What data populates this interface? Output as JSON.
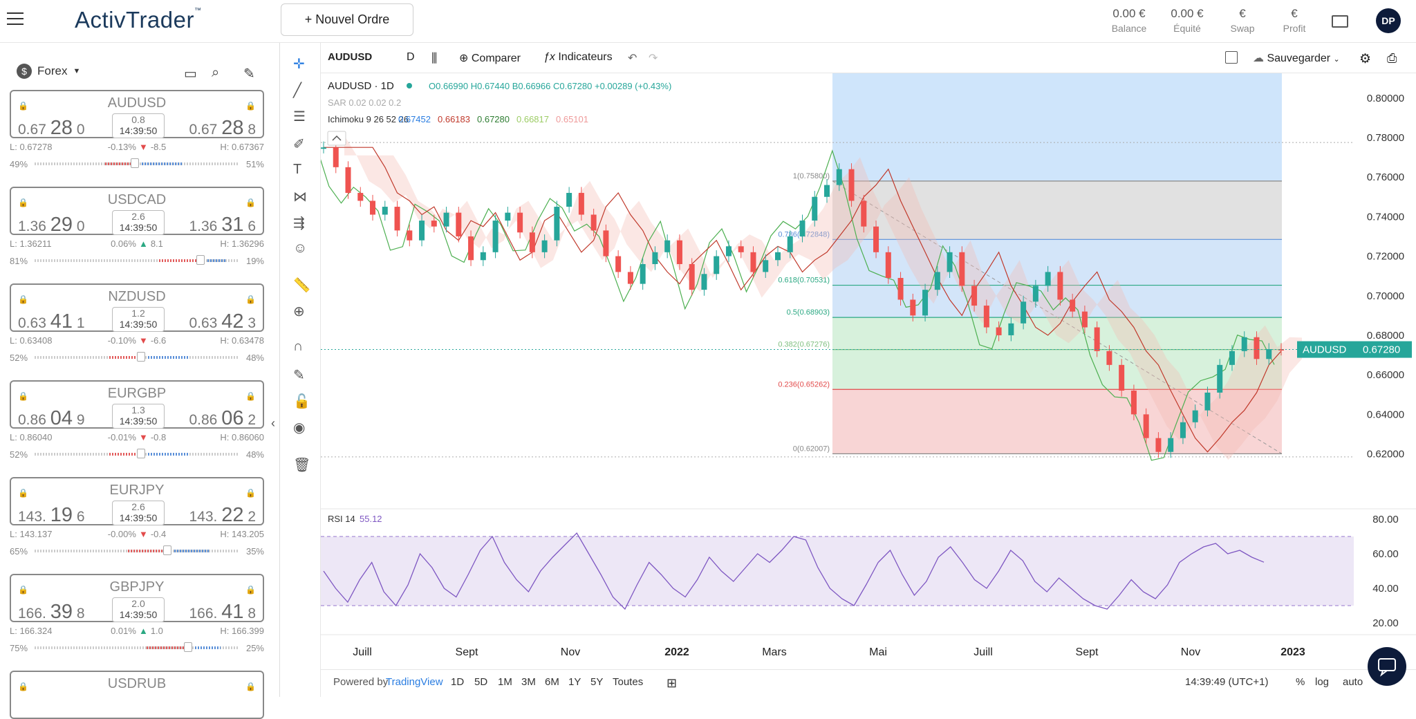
{
  "header": {
    "brand": "ActivTrader",
    "brand_tm": "™",
    "new_order_label": "+ Nouvel Ordre",
    "stats": [
      {
        "value": "0.00 €",
        "label": "Balance"
      },
      {
        "value": "0.00 €",
        "label": "Équité"
      },
      {
        "value": "€",
        "label": "Swap"
      },
      {
        "value": "€",
        "label": "Profit"
      }
    ],
    "avatar": "DP"
  },
  "sidebar": {
    "group_label": "Forex",
    "cards": [
      {
        "symbol": "AUDUSD",
        "bid_prefix": "0.67",
        "bid_big": "28",
        "bid_suffix": "0",
        "ask_prefix": "0.67",
        "ask_big": "28",
        "ask_suffix": "8",
        "spread": "0.8",
        "time": "14:39:50",
        "low": "L: 0.67278",
        "change": "-0.13%",
        "dir": "down",
        "pips": "-8.5",
        "high": "H: 0.67367",
        "sell_pct": "49%",
        "buy_pct": "51%",
        "sell_ratio": 0.49
      },
      {
        "symbol": "USDCAD",
        "bid_prefix": "1.36",
        "bid_big": "29",
        "bid_suffix": "0",
        "ask_prefix": "1.36",
        "ask_big": "31",
        "ask_suffix": "6",
        "spread": "2.6",
        "time": "14:39:50",
        "low": "L: 1.36211",
        "change": "0.06%",
        "dir": "up",
        "pips": "8.1",
        "high": "H: 1.36296",
        "sell_pct": "81%",
        "buy_pct": "19%",
        "sell_ratio": 0.81
      },
      {
        "symbol": "NZDUSD",
        "bid_prefix": "0.63",
        "bid_big": "41",
        "bid_suffix": "1",
        "ask_prefix": "0.63",
        "ask_big": "42",
        "ask_suffix": "3",
        "spread": "1.2",
        "time": "14:39:50",
        "low": "L: 0.63408",
        "change": "-0.10%",
        "dir": "down",
        "pips": "-6.6",
        "high": "H: 0.63478",
        "sell_pct": "52%",
        "buy_pct": "48%",
        "sell_ratio": 0.52
      },
      {
        "symbol": "EURGBP",
        "bid_prefix": "0.86",
        "bid_big": "04",
        "bid_suffix": "9",
        "ask_prefix": "0.86",
        "ask_big": "06",
        "ask_suffix": "2",
        "spread": "1.3",
        "time": "14:39:50",
        "low": "L: 0.86040",
        "change": "-0.01%",
        "dir": "down",
        "pips": "-0.8",
        "high": "H: 0.86060",
        "sell_pct": "52%",
        "buy_pct": "48%",
        "sell_ratio": 0.52
      },
      {
        "symbol": "EURJPY",
        "bid_prefix": "143.",
        "bid_big": "19",
        "bid_suffix": "6",
        "ask_prefix": "143.",
        "ask_big": "22",
        "ask_suffix": "2",
        "spread": "2.6",
        "time": "14:39:50",
        "low": "L: 143.137",
        "change": "-0.00%",
        "dir": "down",
        "pips": "-0.4",
        "high": "H: 143.205",
        "sell_pct": "65%",
        "buy_pct": "35%",
        "sell_ratio": 0.65
      },
      {
        "symbol": "GBPJPY",
        "bid_prefix": "166.",
        "bid_big": "39",
        "bid_suffix": "8",
        "ask_prefix": "166.",
        "ask_big": "41",
        "ask_suffix": "8",
        "spread": "2.0",
        "time": "14:39:50",
        "low": "L: 166.324",
        "change": "0.01%",
        "dir": "up",
        "pips": "1.0",
        "high": "H: 166.399",
        "sell_pct": "75%",
        "buy_pct": "25%",
        "sell_ratio": 0.75
      },
      {
        "symbol": "USDRUB"
      }
    ]
  },
  "toolbar": {
    "symbol": "AUDUSD",
    "interval": "D",
    "compare_label": "Comparer",
    "indicators_label": "Indicateurs",
    "save_label": "Sauvegarder"
  },
  "legend": {
    "title": "AUDUSD · 1D",
    "ohlc": "O0.66990 H0.67440 B0.66966 C0.67280 +0.00289 (+0.43%)",
    "sar": "SAR 0.02 0.02 0.2",
    "ichimoku_label": "Ichimoku 9 26 52 26",
    "ichimoku_values": [
      "0.67452",
      "0.66183",
      "0.67280",
      "0.66817",
      "0.65101"
    ]
  },
  "chart_data": {
    "type": "line",
    "instrument": "AUDUSD",
    "interval": "1D",
    "last_price": "0.67280",
    "price_tag_label": "AUDUSD",
    "y_ticks": [
      "0.80000",
      "0.78000",
      "0.76000",
      "0.74000",
      "0.72000",
      "0.70000",
      "0.68000",
      "0.66000",
      "0.64000",
      "0.62000"
    ],
    "ylim": [
      0.6125,
      0.8125
    ],
    "x_ticks": [
      "Juill",
      "Sept",
      "Nov",
      "2022",
      "Mars",
      "Mai",
      "Juill",
      "Sept",
      "Nov",
      "2023"
    ],
    "fib_levels": [
      {
        "label": "1(0.75800)",
        "value": 0.758
      },
      {
        "label": "0.786(0.72848)",
        "value": 0.72848
      },
      {
        "label": "0.618(0.70531)",
        "value": 0.70531
      },
      {
        "label": "0.5(0.68903)",
        "value": 0.68903
      },
      {
        "label": "0.382(0.67276)",
        "value": 0.67276
      },
      {
        "label": "0.236(0.65262)",
        "value": 0.65262
      },
      {
        "label": "0(0.62007)",
        "value": 0.62007
      }
    ],
    "price_path": [
      0.775,
      0.765,
      0.752,
      0.748,
      0.741,
      0.745,
      0.733,
      0.728,
      0.738,
      0.735,
      0.742,
      0.73,
      0.718,
      0.722,
      0.738,
      0.742,
      0.732,
      0.722,
      0.728,
      0.745,
      0.752,
      0.741,
      0.733,
      0.72,
      0.712,
      0.706,
      0.716,
      0.722,
      0.728,
      0.716,
      0.703,
      0.711,
      0.72,
      0.725,
      0.722,
      0.712,
      0.718,
      0.722,
      0.73,
      0.738,
      0.75,
      0.756,
      0.764,
      0.748,
      0.735,
      0.722,
      0.709,
      0.698,
      0.69,
      0.703,
      0.712,
      0.722,
      0.705,
      0.695,
      0.684,
      0.68,
      0.686,
      0.697,
      0.705,
      0.712,
      0.698,
      0.692,
      0.684,
      0.672,
      0.665,
      0.652,
      0.64,
      0.628,
      0.621,
      0.628,
      0.636,
      0.642,
      0.651,
      0.665,
      0.672,
      0.679,
      0.668,
      0.673,
      0.6728
    ],
    "rsi": {
      "label": "RSI 14",
      "value": "55.12",
      "ticks": [
        "80.00",
        "60.00",
        "40.00",
        "20.00"
      ],
      "ylim": [
        18,
        82
      ],
      "band": [
        30,
        70
      ],
      "path": [
        50,
        40,
        32,
        45,
        55,
        38,
        30,
        42,
        60,
        52,
        40,
        35,
        48,
        62,
        70,
        55,
        45,
        38,
        50,
        58,
        65,
        72,
        60,
        48,
        35,
        28,
        42,
        55,
        48,
        40,
        35,
        45,
        58,
        50,
        44,
        52,
        60,
        55,
        62,
        70,
        68,
        52,
        40,
        34,
        30,
        42,
        55,
        62,
        48,
        36,
        44,
        58,
        64,
        55,
        45,
        40,
        50,
        62,
        56,
        44,
        38,
        46,
        40,
        34,
        30,
        28,
        36,
        45,
        38,
        34,
        42,
        55,
        60,
        64,
        66,
        60,
        62,
        58,
        55.12
      ]
    }
  },
  "bottom_bar": {
    "powered_by": "Powered by",
    "tradingview": "TradingView",
    "ranges": [
      "1D",
      "5D",
      "1M",
      "3M",
      "6M",
      "1Y",
      "5Y",
      "Toutes"
    ],
    "clock": "14:39:49 (UTC+1)",
    "pct": "%",
    "log": "log",
    "auto": "auto"
  }
}
